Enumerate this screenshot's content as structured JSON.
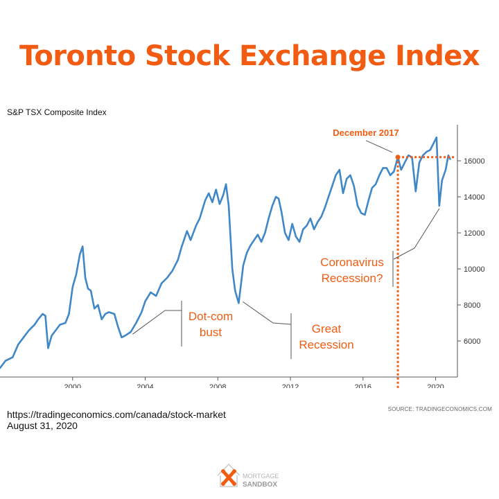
{
  "title": "Toronto Stock Exchange Index",
  "colors": {
    "accent": "#f25c12",
    "line": "#3f87c7",
    "annotation": "#555555",
    "axis": "#555555"
  },
  "chart_data": {
    "type": "line",
    "subtitle": "S&P TSX Composite Index",
    "xlabel": "",
    "ylabel": "",
    "xlim": [
      1996.0,
      2021.2
    ],
    "ylim": [
      4000,
      18000
    ],
    "x_ticks": [
      2000,
      2004,
      2008,
      2012,
      2016,
      2020
    ],
    "y_ticks": [
      6000,
      8000,
      10000,
      12000,
      14000,
      16000
    ],
    "y_axis_side": "right",
    "grid": false,
    "series": [
      {
        "name": "S&P TSX Composite Index",
        "points": [
          [
            1996.0,
            4500
          ],
          [
            1996.3,
            4900
          ],
          [
            1996.7,
            5100
          ],
          [
            1997.0,
            5800
          ],
          [
            1997.3,
            6200
          ],
          [
            1997.6,
            6600
          ],
          [
            1997.9,
            6900
          ],
          [
            1998.1,
            7200
          ],
          [
            1998.35,
            7500
          ],
          [
            1998.5,
            7400
          ],
          [
            1998.65,
            5600
          ],
          [
            1998.85,
            6300
          ],
          [
            1999.0,
            6500
          ],
          [
            1999.3,
            6900
          ],
          [
            1999.6,
            7000
          ],
          [
            1999.8,
            7500
          ],
          [
            2000.0,
            9000
          ],
          [
            2000.2,
            9700
          ],
          [
            2000.4,
            10800
          ],
          [
            2000.55,
            11250
          ],
          [
            2000.7,
            9500
          ],
          [
            2000.85,
            8900
          ],
          [
            2001.0,
            8800
          ],
          [
            2001.2,
            7800
          ],
          [
            2001.4,
            8000
          ],
          [
            2001.6,
            7200
          ],
          [
            2001.8,
            7500
          ],
          [
            2002.0,
            7600
          ],
          [
            2002.3,
            7500
          ],
          [
            2002.5,
            6800
          ],
          [
            2002.7,
            6200
          ],
          [
            2002.9,
            6300
          ],
          [
            2003.2,
            6500
          ],
          [
            2003.5,
            7000
          ],
          [
            2003.8,
            7600
          ],
          [
            2004.0,
            8200
          ],
          [
            2004.3,
            8700
          ],
          [
            2004.6,
            8500
          ],
          [
            2004.9,
            9200
          ],
          [
            2005.2,
            9500
          ],
          [
            2005.5,
            9900
          ],
          [
            2005.8,
            10500
          ],
          [
            2006.0,
            11200
          ],
          [
            2006.3,
            12100
          ],
          [
            2006.5,
            11600
          ],
          [
            2006.8,
            12400
          ],
          [
            2007.0,
            12800
          ],
          [
            2007.3,
            13800
          ],
          [
            2007.5,
            14200
          ],
          [
            2007.7,
            13700
          ],
          [
            2007.9,
            14400
          ],
          [
            2008.1,
            13600
          ],
          [
            2008.3,
            14100
          ],
          [
            2008.45,
            14700
          ],
          [
            2008.6,
            13500
          ],
          [
            2008.8,
            10000
          ],
          [
            2008.95,
            8800
          ],
          [
            2009.15,
            8100
          ],
          [
            2009.4,
            10200
          ],
          [
            2009.6,
            10900
          ],
          [
            2009.8,
            11300
          ],
          [
            2010.0,
            11600
          ],
          [
            2010.2,
            11900
          ],
          [
            2010.4,
            11500
          ],
          [
            2010.6,
            12000
          ],
          [
            2010.8,
            12800
          ],
          [
            2011.0,
            13500
          ],
          [
            2011.2,
            14000
          ],
          [
            2011.35,
            13900
          ],
          [
            2011.5,
            13200
          ],
          [
            2011.7,
            12000
          ],
          [
            2011.9,
            11600
          ],
          [
            2012.1,
            12500
          ],
          [
            2012.3,
            11800
          ],
          [
            2012.5,
            11500
          ],
          [
            2012.7,
            12200
          ],
          [
            2012.9,
            12400
          ],
          [
            2013.1,
            12800
          ],
          [
            2013.3,
            12200
          ],
          [
            2013.5,
            12600
          ],
          [
            2013.7,
            12900
          ],
          [
            2013.9,
            13400
          ],
          [
            2014.1,
            14000
          ],
          [
            2014.3,
            14600
          ],
          [
            2014.5,
            15200
          ],
          [
            2014.7,
            15500
          ],
          [
            2014.9,
            14200
          ],
          [
            2015.1,
            15000
          ],
          [
            2015.3,
            15200
          ],
          [
            2015.5,
            14600
          ],
          [
            2015.7,
            13500
          ],
          [
            2015.9,
            13100
          ],
          [
            2016.1,
            13000
          ],
          [
            2016.3,
            13800
          ],
          [
            2016.5,
            14500
          ],
          [
            2016.7,
            14700
          ],
          [
            2016.9,
            15200
          ],
          [
            2017.1,
            15600
          ],
          [
            2017.3,
            15600
          ],
          [
            2017.5,
            15200
          ],
          [
            2017.7,
            15400
          ],
          [
            2017.92,
            16200
          ],
          [
            2018.1,
            15500
          ],
          [
            2018.3,
            15900
          ],
          [
            2018.5,
            16300
          ],
          [
            2018.7,
            16200
          ],
          [
            2018.9,
            14300
          ],
          [
            2019.1,
            15900
          ],
          [
            2019.3,
            16300
          ],
          [
            2019.5,
            16500
          ],
          [
            2019.7,
            16600
          ],
          [
            2019.9,
            17000
          ],
          [
            2020.05,
            17300
          ],
          [
            2020.2,
            13500
          ],
          [
            2020.35,
            14900
          ],
          [
            2020.55,
            15500
          ],
          [
            2020.7,
            16300
          ],
          [
            2020.8,
            16100
          ]
        ]
      }
    ],
    "annotations": [
      {
        "name": "december-2017",
        "text": "December 2017",
        "x": 2017.92,
        "y": 16200
      },
      {
        "name": "dot-com-bust",
        "text": "Dot-com bust",
        "lines": [
          "Dot-com",
          "bust"
        ],
        "x": 2003.0,
        "y": 6300
      },
      {
        "name": "great-recession",
        "text": "Great Recession",
        "lines": [
          "Great",
          "Recession"
        ],
        "x": 2009.15,
        "y": 8100
      },
      {
        "name": "coronavirus-recession",
        "text": "Coronavirus Recession?",
        "lines": [
          "Coronavirus",
          "Recession?"
        ],
        "x": 2020.2,
        "y": 13500
      }
    ]
  },
  "footer": {
    "url": "https://tradingeconomics.com/canada/stock-market",
    "date": "August 31, 2020",
    "credit": "SOURCE: TRADINGECONOMICS.COM"
  },
  "logo": {
    "line1": "MORTGAGE",
    "line2": "SANDBOX"
  }
}
